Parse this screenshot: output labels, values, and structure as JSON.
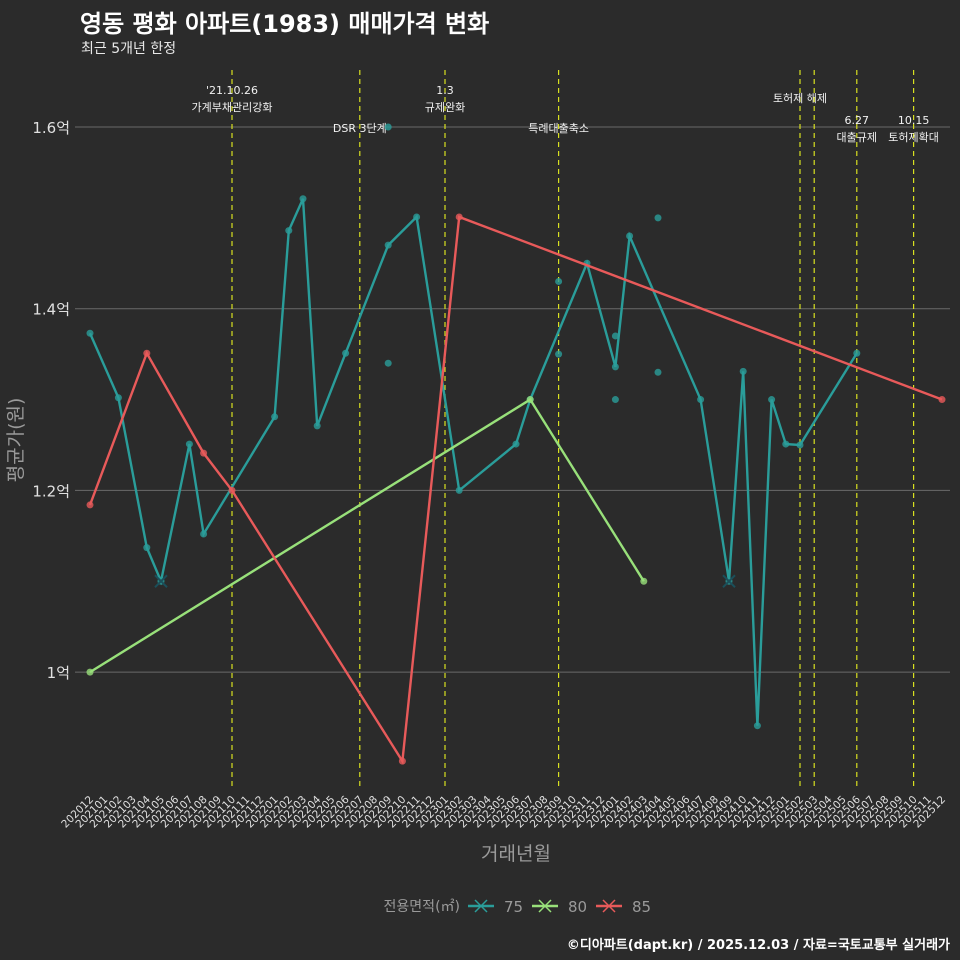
{
  "title": "영동 평화 아파트(1983) 매매가격 변화",
  "subtitle": "최근 5개년 한정",
  "caption": "©디아파트(dapt.kr) / 2025.12.03 / 자료=국토교통부 실거래가",
  "chart_data": {
    "type": "line",
    "xlabel": "거래년월",
    "ylabel": "평균가(원)",
    "x": [
      "202012",
      "202101",
      "202102",
      "202103",
      "202104",
      "202105",
      "202106",
      "202107",
      "202108",
      "202109",
      "202110",
      "202111",
      "202112",
      "202201",
      "202202",
      "202203",
      "202204",
      "202205",
      "202206",
      "202207",
      "202208",
      "202209",
      "202210",
      "202211",
      "202212",
      "202301",
      "202302",
      "202303",
      "202304",
      "202305",
      "202306",
      "202307",
      "202308",
      "202309",
      "202310",
      "202311",
      "202312",
      "202401",
      "202402",
      "202403",
      "202404",
      "202405",
      "202406",
      "202407",
      "202408",
      "202409",
      "202410",
      "202411",
      "202412",
      "202501",
      "202502",
      "202503",
      "202504",
      "202505",
      "202506",
      "202507",
      "202508",
      "202509",
      "202510",
      "202511",
      "202512"
    ],
    "ylim": [
      0.87,
      1.663
    ],
    "yticks": [
      {
        "value": 1.0,
        "label": "1억"
      },
      {
        "value": 1.2,
        "label": "1.2억"
      },
      {
        "value": 1.4,
        "label": "1.4억"
      },
      {
        "value": 1.6,
        "label": "1.6억"
      }
    ],
    "grid": true,
    "legend": {
      "title": "전용면적(㎡)",
      "placement": "bottom"
    },
    "series": [
      {
        "name": "75",
        "color": "#2a9d9a",
        "line": [
          [
            "202012",
            1.373
          ],
          [
            "202102",
            1.302
          ],
          [
            "202104",
            1.137
          ],
          [
            "202105",
            1.1
          ],
          [
            "202107",
            1.251
          ],
          [
            "202108",
            1.152
          ],
          [
            "202201",
            1.281
          ],
          [
            "202202",
            1.486
          ],
          [
            "202203",
            1.521
          ],
          [
            "202204",
            1.271
          ],
          [
            "202206",
            1.351
          ],
          [
            "202209",
            1.47
          ],
          [
            "202211",
            1.501
          ],
          [
            "202302",
            1.2
          ],
          [
            "202306",
            1.251
          ],
          [
            "202307",
            1.3
          ],
          [
            "202311",
            1.45
          ],
          [
            "202401",
            1.336
          ],
          [
            "202402",
            1.48
          ],
          [
            "202407",
            1.3
          ],
          [
            "202409",
            1.1
          ],
          [
            "202410",
            1.331
          ],
          [
            "202411",
            0.941
          ],
          [
            "202412",
            1.3
          ],
          [
            "202501",
            1.251
          ],
          [
            "202502",
            1.25
          ],
          [
            "202506",
            1.351
          ]
        ],
        "points": [
          [
            "202209",
            1.6
          ],
          [
            "202209",
            1.34
          ],
          [
            "202309",
            1.43
          ],
          [
            "202309",
            1.35
          ],
          [
            "202401",
            1.37
          ],
          [
            "202401",
            1.3
          ],
          [
            "202404",
            1.5
          ],
          [
            "202404",
            1.33
          ]
        ],
        "cross": [
          [
            "202105",
            1.1
          ],
          [
            "202409",
            1.1
          ]
        ]
      },
      {
        "name": "80",
        "color": "#98e07a",
        "line": [
          [
            "202012",
            1.0
          ],
          [
            "202307",
            1.3
          ],
          [
            "202403",
            1.1
          ]
        ],
        "points": [],
        "cross": []
      },
      {
        "name": "85",
        "color": "#e85a5a",
        "line": [
          [
            "202012",
            1.184
          ],
          [
            "202104",
            1.351
          ],
          [
            "202108",
            1.241
          ],
          [
            "202110",
            1.2
          ],
          [
            "202210",
            0.902
          ],
          [
            "202302",
            1.501
          ],
          [
            "202512",
            1.3
          ]
        ],
        "points": [],
        "cross": []
      }
    ],
    "annotations": [
      {
        "x": "202110",
        "lines": [
          "'21.10.26",
          "가계부채관리강화"
        ],
        "row": 0
      },
      {
        "x": "202207",
        "lines": [
          "DSR 3단계"
        ],
        "row": 2
      },
      {
        "x": "202301",
        "lines": [
          "1.3",
          "규제완화"
        ],
        "row": 0
      },
      {
        "x": "202309",
        "lines": [
          "특례대출축소"
        ],
        "row": 2
      },
      {
        "x": "202502",
        "lines": [
          "토허제 해제"
        ],
        "row": 1
      },
      {
        "x": "202503",
        "lines": [],
        "row": 1
      },
      {
        "x": "202506",
        "lines": [
          "6.27",
          "대출규제"
        ],
        "row": 3
      },
      {
        "x": "202510",
        "lines": [
          "10.15",
          "토허제확대"
        ],
        "row": 3
      }
    ]
  }
}
